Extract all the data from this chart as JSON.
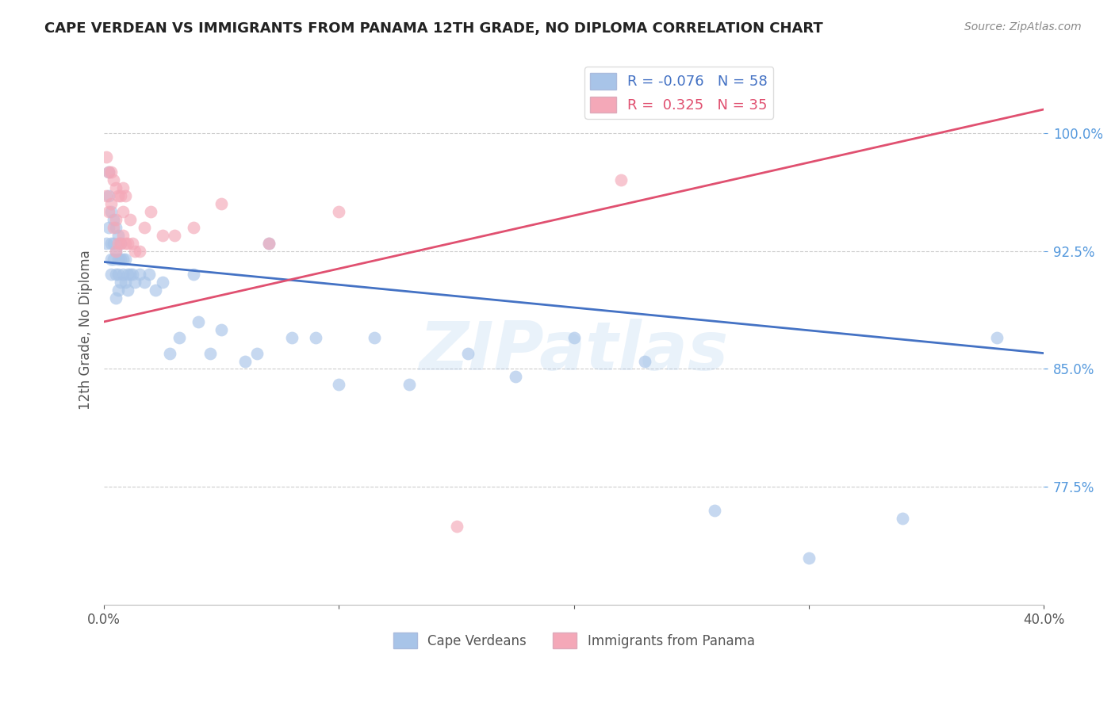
{
  "title": "CAPE VERDEAN VS IMMIGRANTS FROM PANAMA 12TH GRADE, NO DIPLOMA CORRELATION CHART",
  "source": "Source: ZipAtlas.com",
  "ylabel": "12th Grade, No Diploma",
  "xmin": 0.0,
  "xmax": 0.4,
  "ymin": 0.7,
  "ymax": 1.05,
  "legend_r_blue": "-0.076",
  "legend_n_blue": "58",
  "legend_r_pink": "0.325",
  "legend_n_pink": "35",
  "blue_color": "#a8c4e8",
  "pink_color": "#f4a8b8",
  "trend_blue_color": "#4472c4",
  "trend_pink_color": "#e05070",
  "watermark_text": "ZIPatlas",
  "blue_trend_y0": 0.918,
  "blue_trend_y1": 0.86,
  "pink_trend_y0": 0.88,
  "pink_trend_y1": 1.015,
  "blue_scatter_x": [
    0.001,
    0.002,
    0.002,
    0.002,
    0.003,
    0.003,
    0.003,
    0.003,
    0.004,
    0.004,
    0.004,
    0.005,
    0.005,
    0.005,
    0.005,
    0.006,
    0.006,
    0.006,
    0.006,
    0.007,
    0.007,
    0.007,
    0.008,
    0.008,
    0.009,
    0.009,
    0.01,
    0.01,
    0.011,
    0.012,
    0.013,
    0.015,
    0.017,
    0.019,
    0.022,
    0.025,
    0.028,
    0.032,
    0.038,
    0.04,
    0.045,
    0.05,
    0.06,
    0.065,
    0.07,
    0.08,
    0.09,
    0.1,
    0.115,
    0.13,
    0.155,
    0.175,
    0.2,
    0.23,
    0.26,
    0.3,
    0.34,
    0.38
  ],
  "blue_scatter_y": [
    0.93,
    0.975,
    0.96,
    0.94,
    0.95,
    0.93,
    0.92,
    0.91,
    0.945,
    0.93,
    0.92,
    0.94,
    0.925,
    0.91,
    0.895,
    0.935,
    0.92,
    0.91,
    0.9,
    0.93,
    0.92,
    0.905,
    0.92,
    0.91,
    0.92,
    0.905,
    0.91,
    0.9,
    0.91,
    0.91,
    0.905,
    0.91,
    0.905,
    0.91,
    0.9,
    0.905,
    0.86,
    0.87,
    0.91,
    0.88,
    0.86,
    0.875,
    0.855,
    0.86,
    0.93,
    0.87,
    0.87,
    0.84,
    0.87,
    0.84,
    0.86,
    0.845,
    0.87,
    0.855,
    0.76,
    0.73,
    0.755,
    0.87
  ],
  "pink_scatter_x": [
    0.001,
    0.001,
    0.002,
    0.002,
    0.003,
    0.003,
    0.004,
    0.004,
    0.005,
    0.005,
    0.005,
    0.006,
    0.006,
    0.007,
    0.007,
    0.008,
    0.008,
    0.008,
    0.009,
    0.009,
    0.01,
    0.011,
    0.012,
    0.013,
    0.015,
    0.017,
    0.02,
    0.025,
    0.03,
    0.038,
    0.05,
    0.07,
    0.1,
    0.15,
    0.22
  ],
  "pink_scatter_y": [
    0.985,
    0.96,
    0.975,
    0.95,
    0.975,
    0.955,
    0.97,
    0.94,
    0.965,
    0.945,
    0.925,
    0.96,
    0.93,
    0.96,
    0.93,
    0.965,
    0.95,
    0.935,
    0.96,
    0.93,
    0.93,
    0.945,
    0.93,
    0.925,
    0.925,
    0.94,
    0.95,
    0.935,
    0.935,
    0.94,
    0.955,
    0.93,
    0.95,
    0.75,
    0.97
  ]
}
